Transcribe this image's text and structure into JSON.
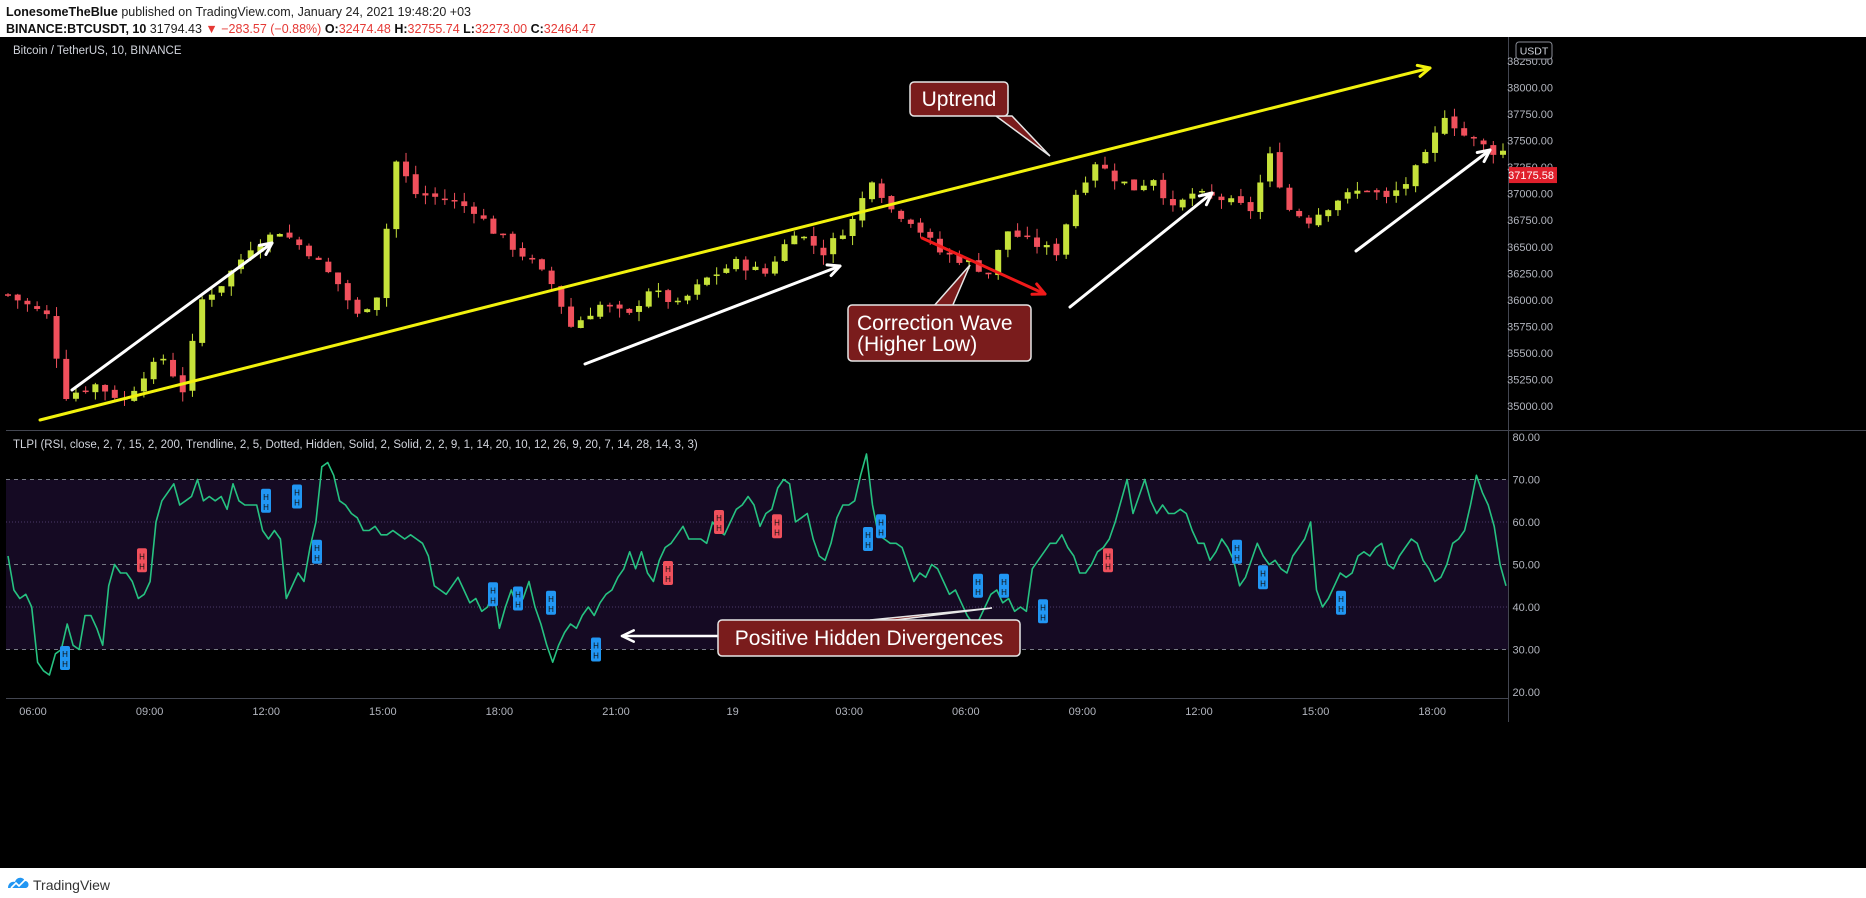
{
  "header": {
    "author": "LonesomeTheBlue",
    "published": "published on TradingView.com, January 24, 2021 19:48:20 +03",
    "symbol": "BINANCE:BTCUSDT, 10",
    "last": "31794.43",
    "change": "▼ −283.57 (−0.88%)",
    "o_label": "O:",
    "o_value": "32474.48",
    "h_label": "H:",
    "h_value": "32755.74",
    "l_label": "L:",
    "l_value": "32273.00",
    "c_label": "C:",
    "c_value": "32464.47"
  },
  "footer": {
    "brand": "TradingView"
  },
  "colors": {
    "background": "#000000",
    "bull": "#c6e23a",
    "bear": "#f0505c",
    "trendline": "#f2f20d",
    "rsi": "#26c281",
    "band": "#150a23",
    "callout": "#7a1c1c",
    "price_tag": "#e0202c",
    "div_bull": "#2196f3",
    "div_bear": "#f0505c"
  },
  "chart_data": [
    {
      "type": "candlestick",
      "title": "Bitcoin / TetherUS, 10, BINANCE",
      "currency": "USDT",
      "current_price": "37175.58",
      "ylim": [
        34850,
        38300
      ],
      "y_ticks": [
        "35000.00",
        "35250.00",
        "35500.00",
        "35750.00",
        "36000.00",
        "36250.00",
        "36500.00",
        "36750.00",
        "37000.00",
        "37250.00",
        "37500.00",
        "37750.00",
        "38000.00",
        "38250.00"
      ],
      "x_ticks": [
        "06:00",
        "09:00",
        "12:00",
        "15:00",
        "18:00",
        "21:00",
        "19",
        "03:00",
        "06:00",
        "09:00",
        "12:00",
        "15:00",
        "18:00"
      ],
      "close_path": [
        [
          0,
          36050
        ],
        [
          4,
          35850
        ],
        [
          6,
          35100
        ],
        [
          9,
          35200
        ],
        [
          12,
          35050
        ],
        [
          14,
          35300
        ],
        [
          16,
          35450
        ],
        [
          18,
          35150
        ],
        [
          20,
          36000
        ],
        [
          22,
          36150
        ],
        [
          25,
          36500
        ],
        [
          28,
          36650
        ],
        [
          31,
          36450
        ],
        [
          34,
          36150
        ],
        [
          36,
          35850
        ],
        [
          38,
          36050
        ],
        [
          40,
          37300
        ],
        [
          42,
          37000
        ],
        [
          45,
          36950
        ],
        [
          48,
          36850
        ],
        [
          50,
          36650
        ],
        [
          52,
          36500
        ],
        [
          54,
          36350
        ],
        [
          56,
          36150
        ],
        [
          58,
          35750
        ],
        [
          61,
          35950
        ],
        [
          64,
          35850
        ],
        [
          66,
          36100
        ],
        [
          69,
          35950
        ],
        [
          72,
          36200
        ],
        [
          75,
          36350
        ],
        [
          78,
          36250
        ],
        [
          81,
          36650
        ],
        [
          84,
          36450
        ],
        [
          87,
          36750
        ],
        [
          89,
          37150
        ],
        [
          91,
          36850
        ],
        [
          93,
          36750
        ],
        [
          96,
          36450
        ],
        [
          99,
          36350
        ],
        [
          101,
          36250
        ],
        [
          103,
          36650
        ],
        [
          105,
          36550
        ],
        [
          108,
          36450
        ],
        [
          110,
          37000
        ],
        [
          112,
          37300
        ],
        [
          114,
          37150
        ],
        [
          116,
          37050
        ],
        [
          118,
          37150
        ],
        [
          120,
          36850
        ],
        [
          122,
          37000
        ],
        [
          125,
          36950
        ],
        [
          128,
          36850
        ],
        [
          130,
          37350
        ],
        [
          132,
          36850
        ],
        [
          134,
          36750
        ],
        [
          137,
          36950
        ],
        [
          140,
          37050
        ],
        [
          142,
          36950
        ],
        [
          144,
          37100
        ],
        [
          146,
          37350
        ],
        [
          148,
          37750
        ],
        [
          150,
          37550
        ],
        [
          153,
          37400
        ]
      ],
      "annotations": {
        "uptrend_label": "Uptrend",
        "correction_label_line1": "Correction Wave",
        "correction_label_line2": "(Higher Low)"
      }
    },
    {
      "type": "line",
      "title": "TLPI (RSI, close, 2, 7, 15, 2, 200, Trendline, 2, 5, Dotted, Hidden, Solid, 2, Solid, 2, 2, 9, 1, 14, 20, 10, 12, 26, 9, 20, 7, 14, 28, 14, 3, 3)",
      "ylim": [
        18,
        82
      ],
      "y_ticks": [
        "20.00",
        "30.00",
        "40.00",
        "50.00",
        "60.00",
        "70.00",
        "80.00"
      ],
      "bands": [
        30,
        70
      ],
      "dashed_levels": [
        30,
        50,
        70
      ],
      "dotted_levels": [
        40,
        60
      ],
      "series": [
        {
          "values": [
            52,
            44,
            42,
            43,
            40,
            27,
            25,
            24,
            29,
            30,
            36,
            31,
            30,
            38,
            38,
            35,
            31,
            45,
            50,
            48,
            48,
            46,
            42,
            43,
            46,
            60,
            65,
            67,
            69,
            64,
            65,
            66,
            70,
            65,
            66,
            65,
            66,
            63,
            69,
            65,
            64,
            64,
            64,
            58,
            56,
            58,
            56,
            42,
            45,
            48,
            46,
            54,
            60,
            73,
            74,
            71,
            65,
            64,
            62,
            61,
            58,
            58,
            59,
            57,
            57,
            58,
            57,
            56,
            57,
            56,
            55,
            52,
            45,
            44,
            43,
            45,
            47,
            44,
            41,
            42,
            39,
            40,
            44,
            35,
            40,
            44,
            40,
            42,
            46,
            40,
            36,
            31,
            27,
            31,
            34,
            36,
            35,
            38,
            40,
            38,
            41,
            43,
            44,
            47,
            49,
            53,
            49,
            53,
            48,
            46,
            51,
            54,
            55,
            57,
            59,
            56,
            56,
            56,
            55,
            60,
            58,
            57,
            60,
            63,
            64,
            66,
            64,
            59,
            62,
            63,
            68,
            70,
            69,
            60,
            61,
            62,
            56,
            52,
            51,
            55,
            61,
            64,
            64,
            65,
            71,
            76,
            64,
            57,
            56,
            55,
            55,
            54,
            50,
            46,
            48,
            47,
            50,
            49,
            46,
            43,
            44,
            41,
            38,
            36,
            37,
            40,
            43,
            44,
            41,
            42,
            39,
            40,
            39,
            49,
            51,
            53,
            55,
            55,
            57,
            54,
            52,
            48,
            48,
            50,
            53,
            54,
            56,
            60,
            65,
            70,
            62,
            66,
            70,
            65,
            62,
            64,
            62,
            62,
            63,
            62,
            58,
            55,
            55,
            51,
            53,
            56,
            54,
            51,
            45,
            47,
            51,
            55,
            52,
            50,
            51,
            49,
            48,
            52,
            54,
            56,
            60,
            44,
            40,
            42,
            45,
            48,
            47,
            48,
            52,
            53,
            52,
            54,
            55,
            50,
            49,
            52,
            54,
            56,
            55,
            51,
            49,
            46,
            47,
            50,
            55,
            56,
            58,
            64,
            71,
            67,
            64,
            59,
            50,
            45
          ]
        }
      ],
      "divergence_markers": [
        {
          "type": "bull",
          "value": 28
        },
        {
          "type": "bear",
          "value": 51
        },
        {
          "type": "bull",
          "value": 65
        },
        {
          "type": "bull",
          "value": 66
        },
        {
          "type": "bull",
          "value": 53
        },
        {
          "type": "bull",
          "value": 43
        },
        {
          "type": "bull",
          "value": 42
        },
        {
          "type": "bull",
          "value": 41
        },
        {
          "type": "bull",
          "value": 30
        },
        {
          "type": "bear",
          "value": 48
        },
        {
          "type": "bear",
          "value": 60
        },
        {
          "type": "bear",
          "value": 59
        },
        {
          "type": "bull",
          "value": 56
        },
        {
          "type": "bull",
          "value": 59
        },
        {
          "type": "bull",
          "value": 45
        },
        {
          "type": "bull",
          "value": 45
        },
        {
          "type": "bull",
          "value": 39
        },
        {
          "type": "bear",
          "value": 51
        },
        {
          "type": "bull",
          "value": 53
        },
        {
          "type": "bull",
          "value": 47
        },
        {
          "type": "bull",
          "value": 41
        }
      ],
      "annotations": {
        "divergence_label": "Positive Hidden Divergences"
      }
    }
  ]
}
